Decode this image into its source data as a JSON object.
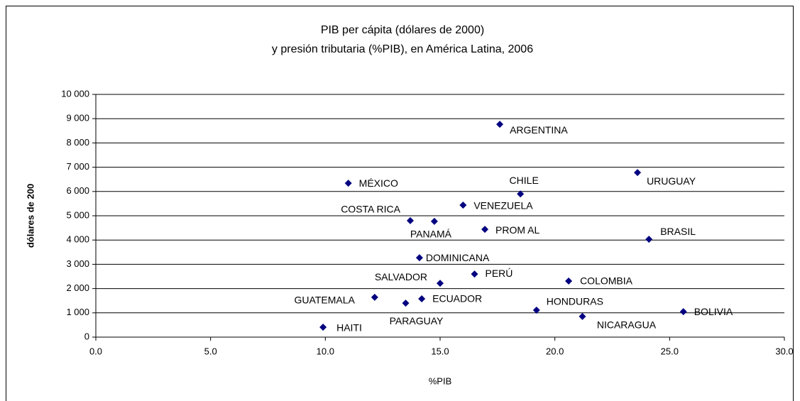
{
  "chart_data": {
    "type": "scatter",
    "title": [
      "PIB per cápita (dólares de 2000)",
      "y presión tributaria (%PIB), en América Latina, 2006"
    ],
    "xlabel": "%PIB",
    "ylabel": "dólares de 200",
    "color": "#000080",
    "grid": true,
    "xlim": [
      0,
      30
    ],
    "ylim": [
      0,
      10000
    ],
    "xticks": [
      {
        "value": 0,
        "label": "0.0"
      },
      {
        "value": 5,
        "label": "5.0"
      },
      {
        "value": 10,
        "label": "10.0"
      },
      {
        "value": 15,
        "label": "15.0"
      },
      {
        "value": 20,
        "label": "20.0"
      },
      {
        "value": 25,
        "label": "25.0"
      },
      {
        "value": 30,
        "label": "30.0"
      }
    ],
    "yticks": [
      0,
      {
        "value": 1000,
        "label": "1 000"
      },
      {
        "value": 2000,
        "label": "2 000"
      },
      {
        "value": 3000,
        "label": "3 000"
      },
      {
        "value": 4000,
        "label": "4 000"
      },
      {
        "value": 5000,
        "label": "5 000"
      },
      {
        "value": 6000,
        "label": "6 000"
      },
      {
        "value": 7000,
        "label": "7 000"
      },
      {
        "value": 8000,
        "label": "8 000"
      },
      {
        "value": 9000,
        "label": "9 000"
      },
      {
        "value": 10000,
        "label": "10 000"
      }
    ],
    "labels": [
      "ARGENTINA",
      "MÉXICO",
      "CHILE",
      "URUGUAY",
      "VENEZUELA",
      "COSTA RICA",
      "PANAMÁ",
      "PROM AL",
      "BRASIL",
      "DOMINICANA",
      "PERÚ",
      "SALVADOR",
      "COLOMBIA",
      "GUATEMALA",
      "ECUADOR",
      "PARAGUAY",
      "HONDURAS",
      "NICARAGUA",
      "BOLIVIA",
      "HAITI"
    ],
    "x": [
      17.6,
      11.0,
      18.5,
      23.6,
      16.0,
      13.7,
      14.75,
      16.95,
      24.1,
      14.1,
      16.5,
      15.0,
      20.6,
      12.15,
      14.2,
      13.5,
      19.2,
      21.2,
      25.6,
      9.9
    ],
    "values": [
      8770,
      6340,
      5900,
      6780,
      5440,
      4800,
      4770,
      4440,
      4030,
      3270,
      2600,
      2220,
      2310,
      1640,
      1580,
      1400,
      1110,
      850,
      1050,
      410
    ]
  }
}
